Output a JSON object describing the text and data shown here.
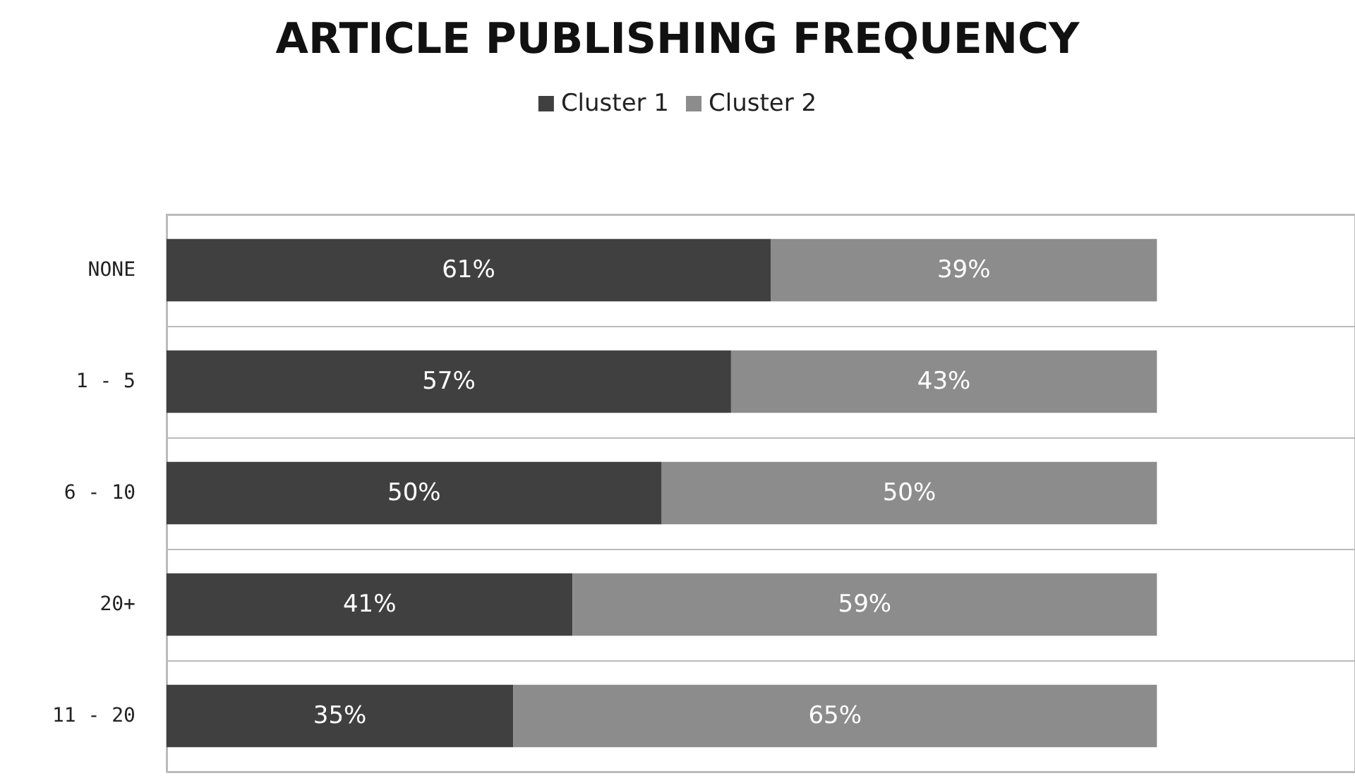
{
  "chart_data": {
    "type": "bar",
    "title": "ARTICLE PUBLISHING FREQUENCY",
    "orientation": "horizontal",
    "stacked": true,
    "categories": [
      "NONE",
      "1 - 5",
      "6 - 10",
      "20+",
      "11 - 20"
    ],
    "series": [
      {
        "name": "Cluster 1",
        "color": "#404040",
        "values": [
          61,
          57,
          50,
          41,
          35
        ],
        "value_labels": [
          "61%",
          "57%",
          "50%",
          "41%",
          "35%"
        ]
      },
      {
        "name": "Cluster 2",
        "color": "#8c8c8c",
        "values": [
          39,
          43,
          50,
          59,
          65
        ],
        "value_labels": [
          "39%",
          "43%",
          "50%",
          "59%",
          "65%"
        ]
      }
    ],
    "xlim": [
      0,
      120
    ],
    "tick_labels": "y",
    "grid": "y",
    "legend": "top"
  }
}
